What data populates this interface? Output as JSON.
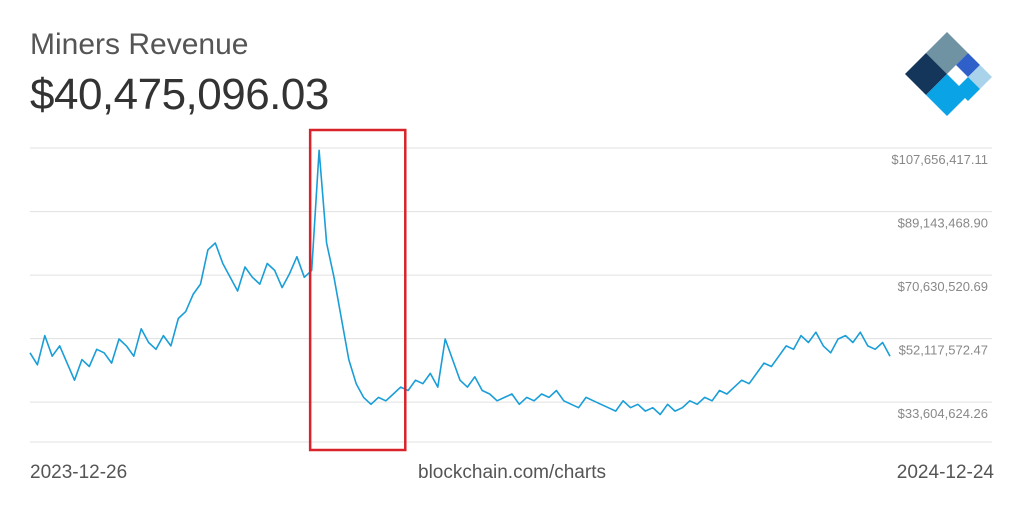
{
  "header": {
    "title": "Miners Revenue",
    "current_value": "$40,475,096.03"
  },
  "footer": {
    "start_date": "2023-12-26",
    "source": "blockchain.com/charts",
    "end_date": "2024-12-24"
  },
  "colors": {
    "line": "#1a9ed8",
    "grid": "#e0e0e0",
    "highlight_box": "#d9232a"
  },
  "chart_data": {
    "type": "line",
    "title": "Miners Revenue",
    "x_range": [
      "2023-12-26",
      "2024-12-24"
    ],
    "ylim": [
      22000000,
      110000000
    ],
    "y_ticks": [
      {
        "value": 107656417.11,
        "label": "$107,656,417.11"
      },
      {
        "value": 89143468.9,
        "label": "$89,143,468.90"
      },
      {
        "value": 70630520.69,
        "label": "$70,630,520.69"
      },
      {
        "value": 52117572.47,
        "label": "$52,117,572.47"
      },
      {
        "value": 33604624.26,
        "label": "$33,604,624.26"
      }
    ],
    "grid": true,
    "highlight": {
      "x_start": "2024-04-10",
      "x_end": "2024-05-16"
    },
    "series": [
      {
        "x_start": "2023-12-26",
        "x_step_days": 3,
        "values": [
          48000000,
          44500000,
          53000000,
          47000000,
          50000000,
          45000000,
          40000000,
          46000000,
          44000000,
          49000000,
          48000000,
          45000000,
          52000000,
          50000000,
          47000000,
          55000000,
          51000000,
          49000000,
          53000000,
          50000000,
          58000000,
          60000000,
          65000000,
          68000000,
          78000000,
          80000000,
          74000000,
          70000000,
          66000000,
          73000000,
          70000000,
          68000000,
          74000000,
          72000000,
          67000000,
          71000000,
          76000000,
          70000000,
          72000000,
          107000000,
          80000000,
          70000000,
          58000000,
          46000000,
          39000000,
          35000000,
          33000000,
          35000000,
          34000000,
          36000000,
          38000000,
          37000000,
          40000000,
          39000000,
          42000000,
          38000000,
          52000000,
          46000000,
          40000000,
          38000000,
          41000000,
          37000000,
          36000000,
          34000000,
          35000000,
          36000000,
          33000000,
          35000000,
          34000000,
          36000000,
          35000000,
          37000000,
          34000000,
          33000000,
          32000000,
          35000000,
          34000000,
          33000000,
          32000000,
          31000000,
          34000000,
          32000000,
          33000000,
          31000000,
          32000000,
          30000000,
          33000000,
          31000000,
          32000000,
          34000000,
          33000000,
          35000000,
          34000000,
          37000000,
          36000000,
          38000000,
          40000000,
          39000000,
          42000000,
          45000000,
          44000000,
          47000000,
          50000000,
          49000000,
          53000000,
          51000000,
          54000000,
          50000000,
          48000000,
          52000000,
          53000000,
          51000000,
          54000000,
          50000000,
          49000000,
          51000000,
          47000000
        ]
      }
    ]
  }
}
